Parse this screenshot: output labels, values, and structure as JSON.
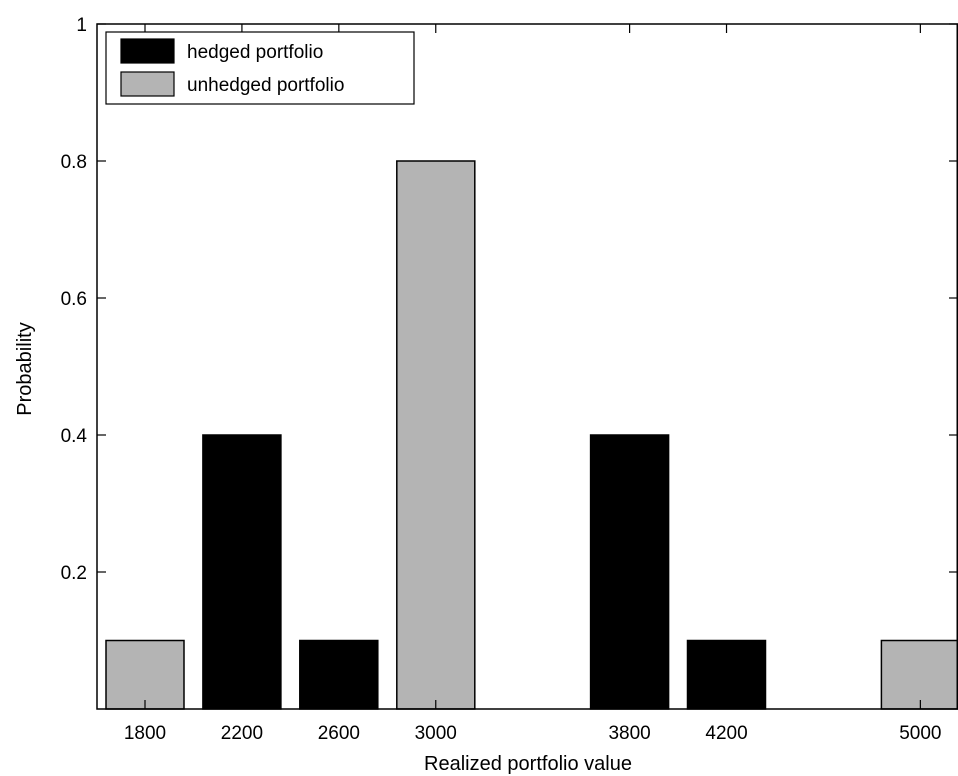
{
  "chart_data": {
    "type": "bar",
    "title": "",
    "xlabel": "Realized portfolio value",
    "ylabel": "Probability",
    "ylim": [
      0,
      1
    ],
    "y_ticks": [
      {
        "value": 0.2,
        "label": "0.2"
      },
      {
        "value": 0.4,
        "label": "0.4"
      },
      {
        "value": 0.6,
        "label": "0.6"
      },
      {
        "value": 0.8,
        "label": "0.8"
      },
      {
        "value": 1,
        "label": "1"
      }
    ],
    "x_ticks": [
      {
        "value": 1800,
        "label": "1800"
      },
      {
        "value": 2200,
        "label": "2200"
      },
      {
        "value": 2600,
        "label": "2600"
      },
      {
        "value": 3000,
        "label": "3000"
      },
      {
        "value": 3800,
        "label": "3800"
      },
      {
        "value": 4200,
        "label": "4200"
      },
      {
        "value": 5000,
        "label": "5000"
      }
    ],
    "legend": {
      "position": "top-left",
      "entries": [
        {
          "label": "hedged portfolio",
          "color": "#000000"
        },
        {
          "label": "unhedged portfolio",
          "color": "#b4b4b4"
        }
      ]
    },
    "series": [
      {
        "name": "hedged portfolio",
        "color": "#000000",
        "points": [
          {
            "x": 2200,
            "y": 0.4
          },
          {
            "x": 2600,
            "y": 0.1
          },
          {
            "x": 3800,
            "y": 0.4
          },
          {
            "x": 4200,
            "y": 0.1
          }
        ]
      },
      {
        "name": "unhedged portfolio",
        "color": "#b4b4b4",
        "points": [
          {
            "x": 1800,
            "y": 0.1
          },
          {
            "x": 3000,
            "y": 0.8
          },
          {
            "x": 5000,
            "y": 0.1
          }
        ]
      }
    ],
    "grid": false
  }
}
